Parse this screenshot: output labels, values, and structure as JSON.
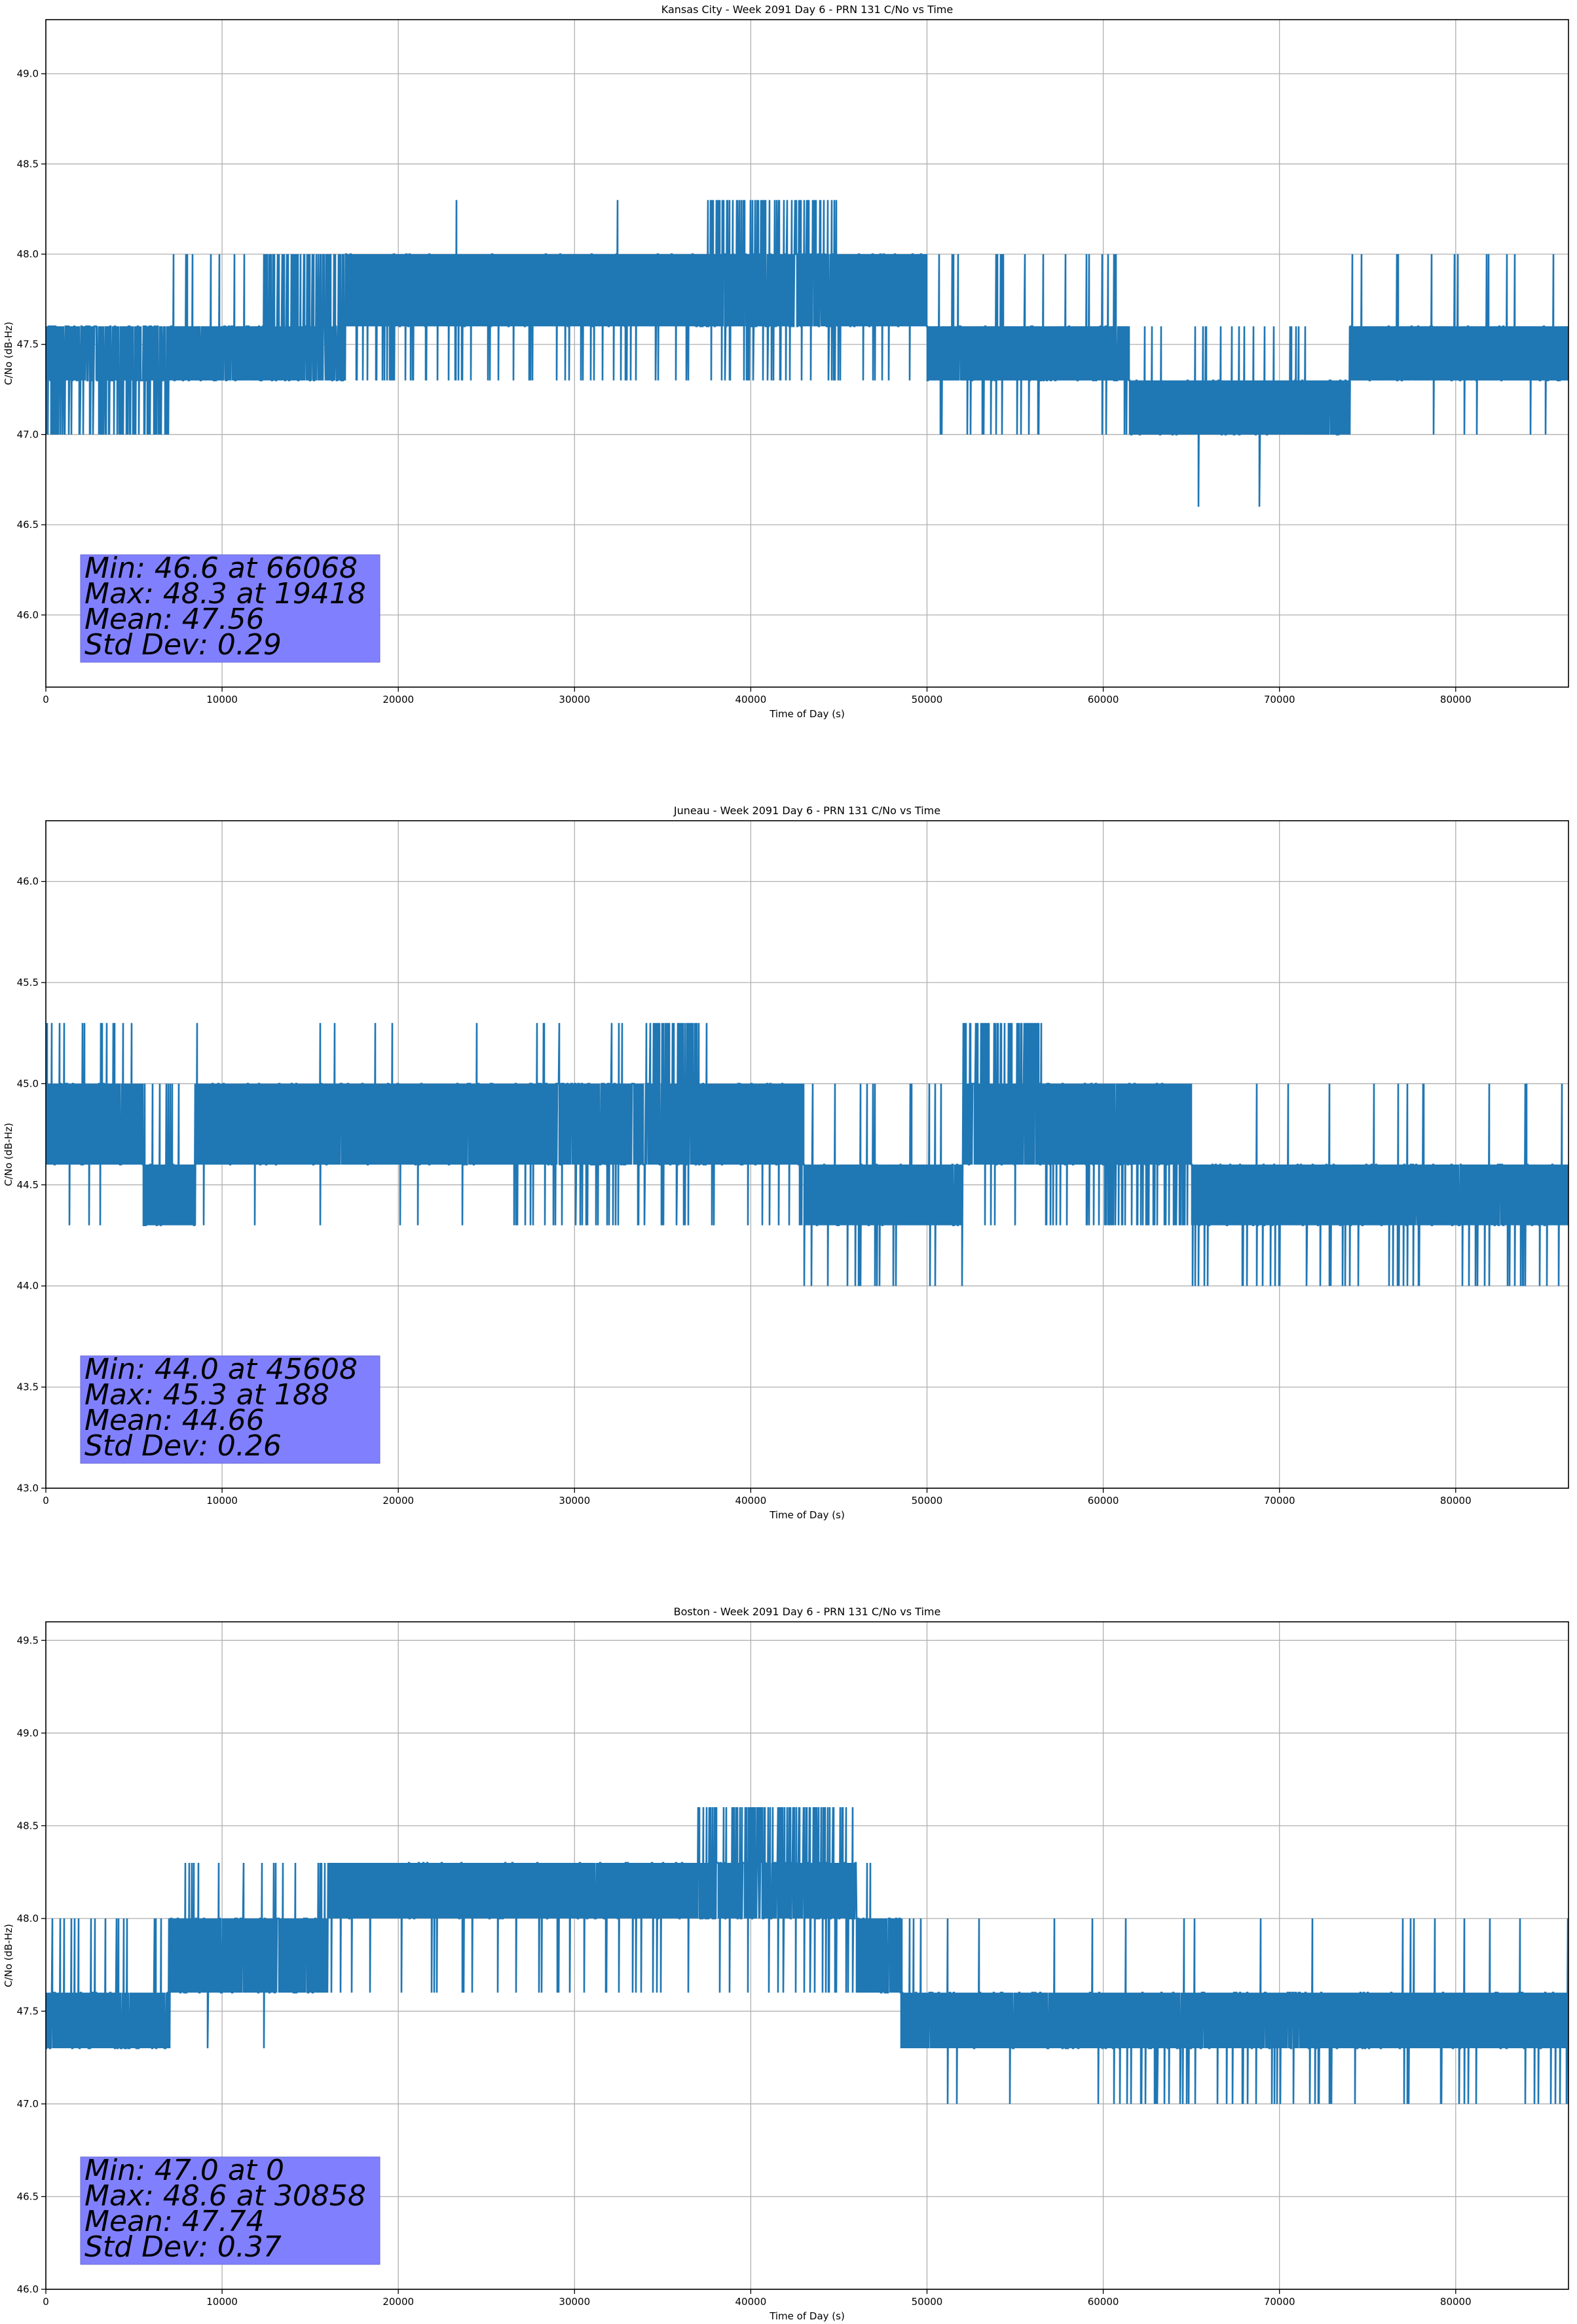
{
  "figure": {
    "line_color": "#1f77b4",
    "grid_color": "#b0b0b0",
    "stats_box_color": "#8080ff"
  },
  "chart_data": [
    {
      "type": "line",
      "title": "Kansas City - Week 2091 Day 6 - PRN 131 C/No vs Time",
      "xlabel": "Time of Day (s)",
      "ylabel": "C/No (dB-Hz)",
      "xlim": [
        0,
        86400
      ],
      "ylim": [
        45.6,
        49.3
      ],
      "xticks": [
        0,
        10000,
        20000,
        30000,
        40000,
        50000,
        60000,
        70000,
        80000
      ],
      "yticks": [
        46.0,
        46.5,
        47.0,
        47.5,
        48.0,
        48.5,
        49.0
      ],
      "grid": true,
      "stats": {
        "lines": [
          "Min: 46.6 at 66068",
          "Max: 48.3 at 19418",
          "Mean: 47.56",
          "Std Dev: 0.29"
        ],
        "min": 46.6,
        "min_at": 66068,
        "max": 48.3,
        "max_at": 19418,
        "mean": 47.56,
        "std_dev": 0.29
      },
      "segments": [
        {
          "x": [
            0,
            7000
          ],
          "band": [
            47.3,
            47.6
          ],
          "density": 0.45,
          "low": 47.0,
          "low_rate": 0.35,
          "high": null,
          "high_rate": 0
        },
        {
          "x": [
            7000,
            12000
          ],
          "band": [
            47.3,
            47.6
          ],
          "density": 0.9,
          "low": null,
          "low_rate": 0,
          "high": 48.0,
          "high_rate": 0.05
        },
        {
          "x": [
            12000,
            17000
          ],
          "band": [
            47.3,
            47.6
          ],
          "density": 0.7,
          "low": null,
          "low_rate": 0,
          "high": 48.0,
          "high_rate": 0.3
        },
        {
          "x": [
            17000,
            37500
          ],
          "band": [
            47.6,
            48.0
          ],
          "density": 0.92,
          "low": 47.3,
          "low_rate": 0.08,
          "high": 48.3,
          "high_rate": 0.003
        },
        {
          "x": [
            37500,
            45000
          ],
          "band": [
            47.6,
            48.0
          ],
          "density": 0.55,
          "low": 47.3,
          "low_rate": 0.12,
          "high": 48.3,
          "high_rate": 0.35
        },
        {
          "x": [
            45000,
            50000
          ],
          "band": [
            47.6,
            48.0
          ],
          "density": 0.9,
          "low": 47.3,
          "low_rate": 0.05,
          "high": null,
          "high_rate": 0
        },
        {
          "x": [
            50000,
            61500
          ],
          "band": [
            47.3,
            47.6
          ],
          "density": 0.9,
          "low": 47.0,
          "low_rate": 0.04,
          "high": 48.0,
          "high_rate": 0.06
        },
        {
          "x": [
            61500,
            74000
          ],
          "band": [
            47.0,
            47.3
          ],
          "density": 0.92,
          "low": 46.6,
          "low_rate": 0.004,
          "high": 47.6,
          "high_rate": 0.05
        },
        {
          "x": [
            74000,
            86400
          ],
          "band": [
            47.3,
            47.6
          ],
          "density": 0.92,
          "low": 47.0,
          "low_rate": 0.02,
          "high": 48.0,
          "high_rate": 0.04
        }
      ]
    },
    {
      "type": "line",
      "title": "Juneau - Week 2091 Day 6 - PRN 131 C/No vs Time",
      "xlabel": "Time of Day (s)",
      "ylabel": "C/No (dB-Hz)",
      "xlim": [
        0,
        86400
      ],
      "ylim": [
        43.0,
        46.3
      ],
      "xticks": [
        0,
        10000,
        20000,
        30000,
        40000,
        50000,
        60000,
        70000,
        80000
      ],
      "yticks": [
        43.0,
        43.5,
        44.0,
        44.5,
        45.0,
        45.5,
        46.0
      ],
      "grid": true,
      "stats": {
        "lines": [
          "Min: 44.0 at 45608",
          "Max: 45.3 at 188",
          "Mean: 44.66",
          "Std Dev: 0.26"
        ],
        "min": 44.0,
        "min_at": 45608,
        "max": 45.3,
        "max_at": 188,
        "mean": 44.66,
        "std_dev": 0.26
      },
      "segments": [
        {
          "x": [
            0,
            5500
          ],
          "band": [
            44.6,
            45.0
          ],
          "density": 0.9,
          "low": 44.3,
          "low_rate": 0.02,
          "high": 45.3,
          "high_rate": 0.1
        },
        {
          "x": [
            5500,
            8500
          ],
          "band": [
            44.3,
            44.6
          ],
          "density": 0.85,
          "low": null,
          "low_rate": 0,
          "high": 45.0,
          "high_rate": 0.15
        },
        {
          "x": [
            8500,
            26500
          ],
          "band": [
            44.6,
            45.0
          ],
          "density": 0.93,
          "low": 44.3,
          "low_rate": 0.015,
          "high": 45.3,
          "high_rate": 0.01
        },
        {
          "x": [
            26500,
            34000
          ],
          "band": [
            44.6,
            45.0
          ],
          "density": 0.7,
          "low": 44.3,
          "low_rate": 0.12,
          "high": 45.3,
          "high_rate": 0.03
        },
        {
          "x": [
            34000,
            37500
          ],
          "band": [
            44.6,
            45.0
          ],
          "density": 0.7,
          "low": 44.3,
          "low_rate": 0.05,
          "high": 45.3,
          "high_rate": 0.4
        },
        {
          "x": [
            37500,
            43000
          ],
          "band": [
            44.6,
            45.0
          ],
          "density": 0.9,
          "low": 44.3,
          "low_rate": 0.05,
          "high": null,
          "high_rate": 0
        },
        {
          "x": [
            43000,
            52000
          ],
          "band": [
            44.3,
            44.6
          ],
          "density": 0.88,
          "low": 44.0,
          "low_rate": 0.08,
          "high": 45.0,
          "high_rate": 0.04
        },
        {
          "x": [
            52000,
            56500
          ],
          "band": [
            44.6,
            45.0
          ],
          "density": 0.75,
          "low": 44.3,
          "low_rate": 0.05,
          "high": 45.3,
          "high_rate": 0.4
        },
        {
          "x": [
            56500,
            65000
          ],
          "band": [
            44.6,
            45.0
          ],
          "density": 0.85,
          "low": 44.3,
          "low_rate": 0.2,
          "high": null,
          "high_rate": 0
        },
        {
          "x": [
            65000,
            86400
          ],
          "band": [
            44.3,
            44.6
          ],
          "density": 0.92,
          "low": 44.0,
          "low_rate": 0.08,
          "high": 45.0,
          "high_rate": 0.03
        }
      ]
    },
    {
      "type": "line",
      "title": "Boston - Week 2091 Day 6 - PRN 131 C/No vs Time",
      "xlabel": "Time of Day (s)",
      "ylabel": "C/No (dB-Hz)",
      "xlim": [
        0,
        86400
      ],
      "ylim": [
        46.0,
        49.6
      ],
      "xticks": [
        0,
        10000,
        20000,
        30000,
        40000,
        50000,
        60000,
        70000,
        80000
      ],
      "yticks": [
        46.0,
        46.5,
        47.0,
        47.5,
        48.0,
        48.5,
        49.0,
        49.5
      ],
      "grid": true,
      "stats": {
        "lines": [
          "Min: 47.0 at 0",
          "Max: 48.6 at 30858",
          "Mean: 47.74",
          "Std Dev: 0.37"
        ],
        "min": 47.0,
        "min_at": 0,
        "max": 48.6,
        "max_at": 30858,
        "mean": 47.74,
        "std_dev": 0.37
      },
      "segments": [
        {
          "x": [
            0,
            7000
          ],
          "band": [
            47.3,
            47.6
          ],
          "density": 0.85,
          "low": 47.0,
          "low_rate": 0.005,
          "high": 48.0,
          "high_rate": 0.08
        },
        {
          "x": [
            7000,
            16000
          ],
          "band": [
            47.6,
            48.0
          ],
          "density": 0.85,
          "low": 47.3,
          "low_rate": 0.01,
          "high": 48.3,
          "high_rate": 0.06
        },
        {
          "x": [
            16000,
            37000
          ],
          "band": [
            48.0,
            48.3
          ],
          "density": 0.92,
          "low": 47.6,
          "low_rate": 0.06,
          "high": 48.6,
          "high_rate": 0.004
        },
        {
          "x": [
            37000,
            46000
          ],
          "band": [
            48.0,
            48.3
          ],
          "density": 0.6,
          "low": 47.6,
          "low_rate": 0.06,
          "high": 48.6,
          "high_rate": 0.35
        },
        {
          "x": [
            46000,
            48500
          ],
          "band": [
            47.6,
            48.0
          ],
          "density": 0.9,
          "low": 47.3,
          "low_rate": 0.05,
          "high": 48.3,
          "high_rate": 0.05
        },
        {
          "x": [
            48500,
            60000
          ],
          "band": [
            47.3,
            47.6
          ],
          "density": 0.9,
          "low": 47.0,
          "low_rate": 0.01,
          "high": 48.0,
          "high_rate": 0.04
        },
        {
          "x": [
            60000,
            73000
          ],
          "band": [
            47.3,
            47.6
          ],
          "density": 0.9,
          "low": 47.0,
          "low_rate": 0.12,
          "high": 48.0,
          "high_rate": 0.01
        },
        {
          "x": [
            73000,
            86400
          ],
          "band": [
            47.3,
            47.6
          ],
          "density": 0.92,
          "low": 47.0,
          "low_rate": 0.05,
          "high": 48.0,
          "high_rate": 0.03
        }
      ]
    }
  ]
}
